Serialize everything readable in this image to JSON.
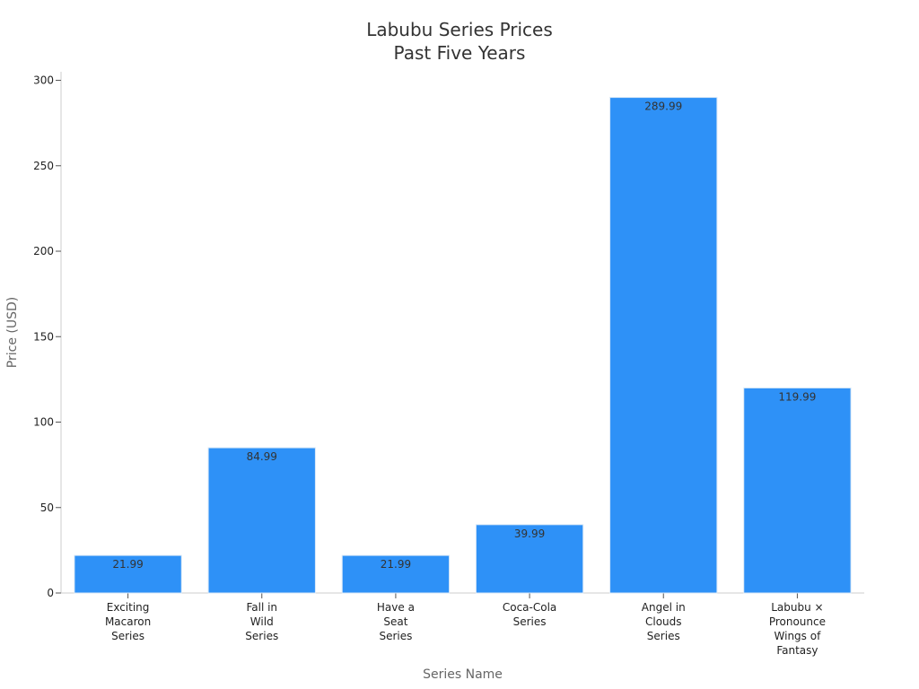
{
  "chart_data": {
    "type": "bar",
    "title": [
      "Labubu Series Prices",
      "Past Five Years"
    ],
    "xlabel": "Series Name",
    "ylabel": "Price (USD)",
    "ylim": [
      0,
      305
    ],
    "yticks": [
      0,
      50,
      100,
      150,
      200,
      250,
      300
    ],
    "categories": [
      [
        "Exciting",
        "Macaron",
        "Series"
      ],
      [
        "Fall in",
        "Wild",
        "Series"
      ],
      [
        "Have a",
        "Seat",
        "Series"
      ],
      [
        "Coca-Cola",
        "Series"
      ],
      [
        "Angel in",
        "Clouds",
        "Series"
      ],
      [
        "Labubu ×",
        "Pronounce",
        "Wings of",
        "Fantasy"
      ]
    ],
    "values": [
      21.99,
      84.99,
      21.99,
      39.99,
      289.99,
      119.99
    ],
    "data_labels": [
      "21.99",
      "84.99",
      "21.99",
      "39.99",
      "289.99",
      "119.99"
    ],
    "bar_color": "#2e91f7",
    "bar_edge_color": "#d9e8f7",
    "grid": false,
    "legend": "none"
  }
}
